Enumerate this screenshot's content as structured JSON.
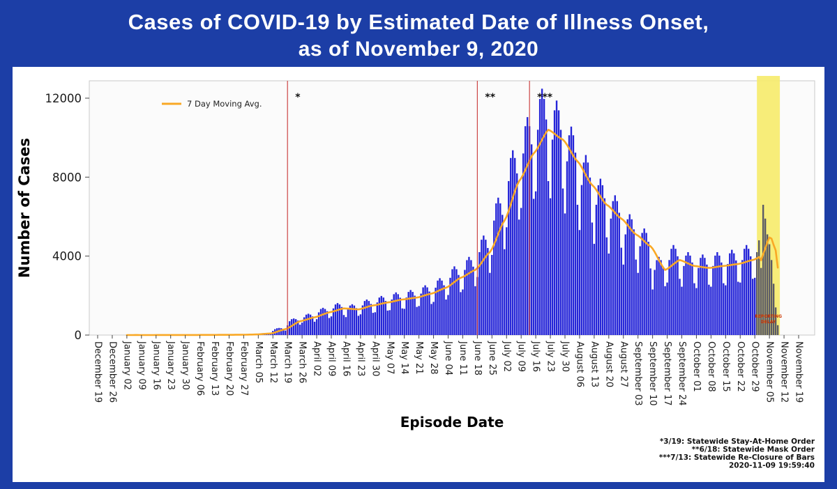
{
  "page": {
    "background_color": "#1c3ea6",
    "title_line1": "Cases of COVID-19 by Estimated Date of Illness Onset,",
    "title_line2": "as of November 9, 2020"
  },
  "chart_data": {
    "type": "bar",
    "title": "Cases of COVID-19 by Estimated Date of Illness Onset, as of November 9, 2020",
    "xlabel": "Episode Date",
    "ylabel": "Number of Cases",
    "legend_label": "7 Day Moving Avg.",
    "yticks": [
      0,
      4000,
      8000,
      12000
    ],
    "ylim": [
      0,
      12880
    ],
    "grid": false,
    "x_tick_labels": [
      "December 19",
      "December 26",
      "January 02",
      "January 09",
      "January 16",
      "January 23",
      "January 30",
      "February 06",
      "February 13",
      "February 20",
      "February 27",
      "March 05",
      "March 12",
      "March 19",
      "March 26",
      "April 02",
      "April 09",
      "April 16",
      "April 23",
      "April 30",
      "May 07",
      "May 14",
      "May 21",
      "May 28",
      "June 04",
      "June 11",
      "June 18",
      "June 25",
      "July 02",
      "July 09",
      "July 16",
      "July 23",
      "July 30",
      "August 06",
      "August 13",
      "August 20",
      "August 27",
      "September 03",
      "September 10",
      "September 17",
      "September 24",
      "October 01",
      "October 08",
      "October 15",
      "October 22",
      "October 29",
      "November 05",
      "November 12",
      "November 19"
    ],
    "days_per_tick": 7,
    "total_days": 336,
    "first_bar_day": 14,
    "bar_color": "#2525d8",
    "delayed_bar_color": "#5a5a66",
    "moving_avg_color": "#f9a825",
    "event_line_color": "#cc4444",
    "event_lines": [
      {
        "day": 91,
        "date": "March 19",
        "label": "*"
      },
      {
        "day": 182,
        "date": "June 18",
        "label": "**"
      },
      {
        "day": 207,
        "date": "July 13",
        "label": "***"
      }
    ],
    "reporting_delay": {
      "start_day": 316,
      "end_day": 327,
      "band_color": "#f6ec6e",
      "label_line1": "REPORTING",
      "label_line2": "DELAY",
      "label_color": "#cc3300"
    },
    "daily_values": [
      1,
      2,
      2,
      2,
      2,
      2,
      1,
      1,
      2,
      2,
      2,
      2,
      2,
      1,
      2,
      3,
      3,
      4,
      3,
      3,
      2,
      3,
      4,
      5,
      5,
      5,
      4,
      3,
      4,
      5,
      6,
      6,
      6,
      5,
      4,
      6,
      8,
      9,
      10,
      9,
      8,
      6,
      7,
      10,
      12,
      12,
      12,
      10,
      8,
      11,
      15,
      17,
      18,
      17,
      16,
      11,
      21,
      30,
      35,
      36,
      35,
      32,
      23,
      56,
      80,
      92,
      96,
      92,
      84,
      60,
      210,
      300,
      345,
      360,
      345,
      315,
      225,
      490,
      700,
      805,
      840,
      805,
      735,
      525,
      630,
      900,
      1035,
      1080,
      1035,
      945,
      675,
      805,
      1150,
      1320,
      1380,
      1320,
      1210,
      865,
      945,
      1350,
      1550,
      1620,
      1550,
      1420,
      1015,
      910,
      1300,
      1495,
      1560,
      1495,
      1365,
      975,
      1050,
      1500,
      1725,
      1800,
      1725,
      1575,
      1125,
      1155,
      1650,
      1900,
      1980,
      1900,
      1730,
      1240,
      1260,
      1800,
      2070,
      2160,
      2070,
      1890,
      1350,
      1330,
      1900,
      2185,
      2280,
      2185,
      1995,
      1425,
      1470,
      2100,
      2415,
      2520,
      2415,
      2205,
      1575,
      1680,
      2400,
      2760,
      2880,
      2760,
      2520,
      1800,
      2030,
      2900,
      3335,
      3480,
      3335,
      3045,
      2175,
      2310,
      3300,
      3795,
      3960,
      3795,
      3465,
      2475,
      2940,
      4200,
      4830,
      5040,
      4830,
      4410,
      3150,
      4060,
      5800,
      6670,
      6960,
      6670,
      6090,
      4350,
      5460,
      7800,
      8970,
      9360,
      8970,
      8190,
      5850,
      6440,
      9200,
      10580,
      11040,
      10580,
      9660,
      6900,
      7280,
      10400,
      11960,
      12480,
      11960,
      10920,
      7800,
      6930,
      9900,
      11385,
      11880,
      11385,
      10395,
      7425,
      6160,
      8800,
      10120,
      10560,
      10120,
      9240,
      6600,
      5320,
      7600,
      8740,
      9120,
      8740,
      7980,
      5700,
      4620,
      6600,
      7590,
      7920,
      7590,
      6930,
      4950,
      4130,
      5900,
      6785,
      7080,
      6785,
      6195,
      4425,
      3570,
      5100,
      5865,
      6120,
      5865,
      5355,
      3825,
      3150,
      4500,
      5175,
      5400,
      5175,
      4725,
      3375,
      2310,
      3300,
      3795,
      3960,
      3795,
      3465,
      2475,
      2660,
      3800,
      4370,
      4560,
      4370,
      3990,
      2850,
      2450,
      3500,
      4025,
      4200,
      4025,
      3675,
      2625,
      2380,
      3400,
      3910,
      4080,
      3910,
      3570,
      2550,
      2450,
      3500,
      4025,
      4200,
      4025,
      3675,
      2625,
      2520,
      3600,
      4140,
      4320,
      4140,
      3780,
      2700,
      2660,
      3800,
      4370,
      4560,
      4370,
      3990,
      2850,
      2900,
      4200,
      4800,
      3400,
      6600,
      5900,
      5100,
      4600,
      3800,
      2600,
      1400,
      500
    ],
    "footnotes": [
      "*3/19: Statewide Stay-At-Home Order",
      "**6/18: Statewide Mask Order",
      "***7/13: Statewide Re-Closure of Bars",
      "2020-11-09 19:59:40"
    ]
  }
}
